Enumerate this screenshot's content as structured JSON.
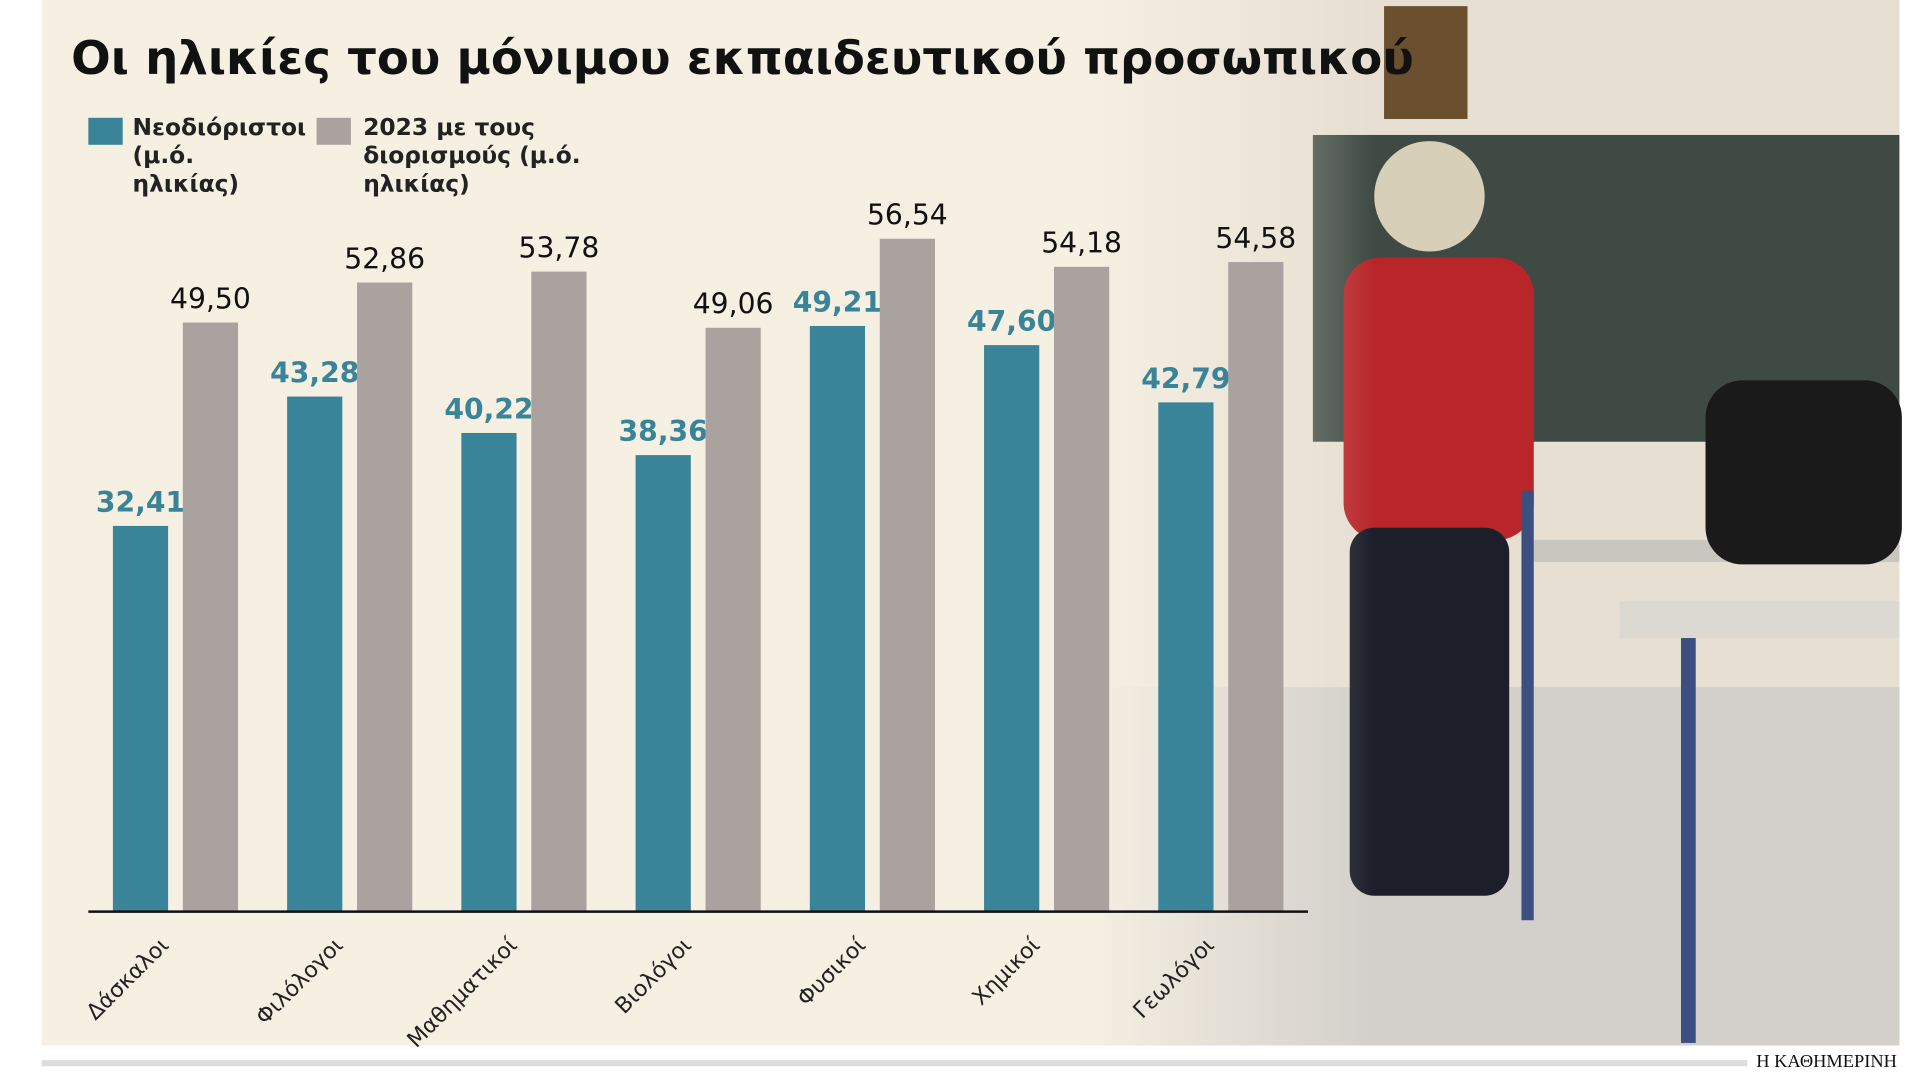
{
  "chart_data": {
    "type": "bar",
    "title": "Οι ηλικίες του μόνιμου εκπαιδευτικού προσωπικού",
    "categories": [
      "Δάσκαλοι",
      "Φιλόλογοι",
      "Μαθηματικοί",
      "Βιολόγοι",
      "Φυσικοί",
      "Χημικοί",
      "Γεωλόγοι"
    ],
    "series": [
      {
        "name": "Νεοδιόριστοι (μ.ό. ηλικίας)",
        "color": "#3a8499",
        "values": [
          32.41,
          43.28,
          40.22,
          38.36,
          49.21,
          47.6,
          42.79
        ],
        "value_labels": [
          "32,41",
          "43,28",
          "40,22",
          "38,36",
          "49,21",
          "47,60",
          "42,79"
        ]
      },
      {
        "name": "2023 με τους διορισμούς (μ.ό. ηλικίας)",
        "color": "#aaa29f",
        "values": [
          49.5,
          52.86,
          53.78,
          49.06,
          56.54,
          54.18,
          54.58
        ],
        "value_labels": [
          "49,50",
          "52,86",
          "53,78",
          "49,06",
          "56,54",
          "54,18",
          "54,58"
        ]
      }
    ],
    "ylim": [
      0,
      60
    ],
    "source": "Η ΚΑΘΗΜΕΡΙΝΗ"
  }
}
